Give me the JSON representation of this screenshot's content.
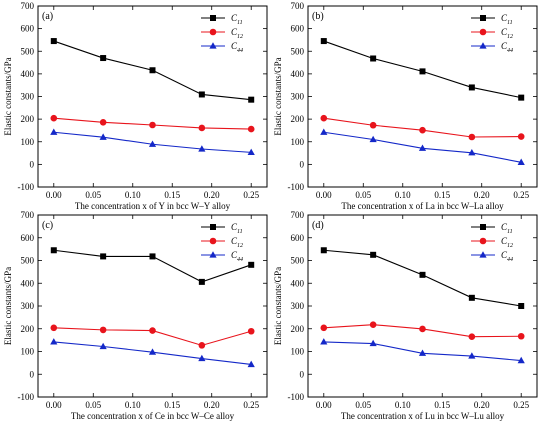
{
  "chart_data": [
    {
      "type": "line",
      "panel_label": "(a)",
      "xlabel": "The concentration x of Y in bcc W–Y alloy",
      "ylabel": "Elastic constants/GPa",
      "x": [
        0.0,
        0.0625,
        0.125,
        0.1875,
        0.25
      ],
      "xlim": [
        -0.02,
        0.27
      ],
      "ylim": [
        -100,
        700
      ],
      "x_ticks": [
        "0.00",
        "0.05",
        "0.10",
        "0.15",
        "0.20",
        "0.25"
      ],
      "y_ticks": [
        "-100",
        "0",
        "100",
        "200",
        "300",
        "400",
        "500",
        "600",
        "700"
      ],
      "legend_position": "top-right",
      "series": [
        {
          "name": "C11",
          "sym": "C",
          "sub": "11",
          "color": "#000000",
          "marker": "square",
          "values": [
            545,
            470,
            416,
            309,
            286
          ]
        },
        {
          "name": "C12",
          "sym": "C",
          "sub": "12",
          "color": "#e8141c",
          "marker": "circle",
          "values": [
            204,
            186,
            174,
            161,
            156
          ]
        },
        {
          "name": "C44",
          "sym": "C",
          "sub": "44",
          "color": "#1428c8",
          "marker": "triangle",
          "values": [
            142,
            120,
            89,
            68,
            53
          ]
        }
      ]
    },
    {
      "type": "line",
      "panel_label": "(b)",
      "xlabel": "The concentration x of La in bcc W–La alloy",
      "ylabel": "Elastic constants/GPa",
      "x": [
        0.0,
        0.0625,
        0.125,
        0.1875,
        0.25
      ],
      "xlim": [
        -0.02,
        0.27
      ],
      "ylim": [
        -100,
        700
      ],
      "x_ticks": [
        "0.00",
        "0.05",
        "0.10",
        "0.15",
        "0.20",
        "0.25"
      ],
      "y_ticks": [
        "-100",
        "0",
        "100",
        "200",
        "300",
        "400",
        "500",
        "600",
        "700"
      ],
      "legend_position": "top-right",
      "series": [
        {
          "name": "C11",
          "sym": "C",
          "sub": "11",
          "color": "#000000",
          "marker": "square",
          "values": [
            545,
            468,
            411,
            340,
            295
          ]
        },
        {
          "name": "C12",
          "sym": "C",
          "sub": "12",
          "color": "#e8141c",
          "marker": "circle",
          "values": [
            204,
            173,
            151,
            121,
            123
          ]
        },
        {
          "name": "C44",
          "sym": "C",
          "sub": "44",
          "color": "#1428c8",
          "marker": "triangle",
          "values": [
            142,
            110,
            71,
            51,
            9
          ]
        }
      ]
    },
    {
      "type": "line",
      "panel_label": "(c)",
      "xlabel": "The concentration x of Ce in bcc W–Ce alloy",
      "ylabel": "Elastic constants/GPa",
      "x": [
        0.0,
        0.0625,
        0.125,
        0.1875,
        0.25
      ],
      "xlim": [
        -0.02,
        0.27
      ],
      "ylim": [
        -100,
        700
      ],
      "x_ticks": [
        "0.00",
        "0.05",
        "0.10",
        "0.15",
        "0.20",
        "0.25"
      ],
      "y_ticks": [
        "-100",
        "0",
        "100",
        "200",
        "300",
        "400",
        "500",
        "600",
        "700"
      ],
      "legend_position": "top-right",
      "series": [
        {
          "name": "C11",
          "sym": "C",
          "sub": "11",
          "color": "#000000",
          "marker": "square",
          "values": [
            545,
            518,
            518,
            406,
            481
          ]
        },
        {
          "name": "C12",
          "sym": "C",
          "sub": "12",
          "color": "#e8141c",
          "marker": "circle",
          "values": [
            204,
            195,
            192,
            127,
            189
          ]
        },
        {
          "name": "C44",
          "sym": "C",
          "sub": "44",
          "color": "#1428c8",
          "marker": "triangle",
          "values": [
            142,
            122,
            97,
            69,
            43
          ]
        }
      ]
    },
    {
      "type": "line",
      "panel_label": "(d)",
      "xlabel": "The concentration x of Lu in bcc W–Lu alloy",
      "ylabel": "Elastic constants/GPa",
      "x": [
        0.0,
        0.0625,
        0.125,
        0.1875,
        0.25
      ],
      "xlim": [
        -0.02,
        0.27
      ],
      "ylim": [
        -100,
        700
      ],
      "x_ticks": [
        "0.00",
        "0.05",
        "0.10",
        "0.15",
        "0.20",
        "0.25"
      ],
      "y_ticks": [
        "-100",
        "0",
        "100",
        "200",
        "300",
        "400",
        "500",
        "600",
        "700"
      ],
      "legend_position": "top-right",
      "series": [
        {
          "name": "C11",
          "sym": "C",
          "sub": "11",
          "color": "#000000",
          "marker": "square",
          "values": [
            545,
            525,
            437,
            336,
            300
          ]
        },
        {
          "name": "C12",
          "sym": "C",
          "sub": "12",
          "color": "#e8141c",
          "marker": "circle",
          "values": [
            204,
            218,
            199,
            165,
            167
          ]
        },
        {
          "name": "C44",
          "sym": "C",
          "sub": "44",
          "color": "#1428c8",
          "marker": "triangle",
          "values": [
            142,
            135,
            92,
            80,
            60
          ]
        }
      ]
    }
  ]
}
